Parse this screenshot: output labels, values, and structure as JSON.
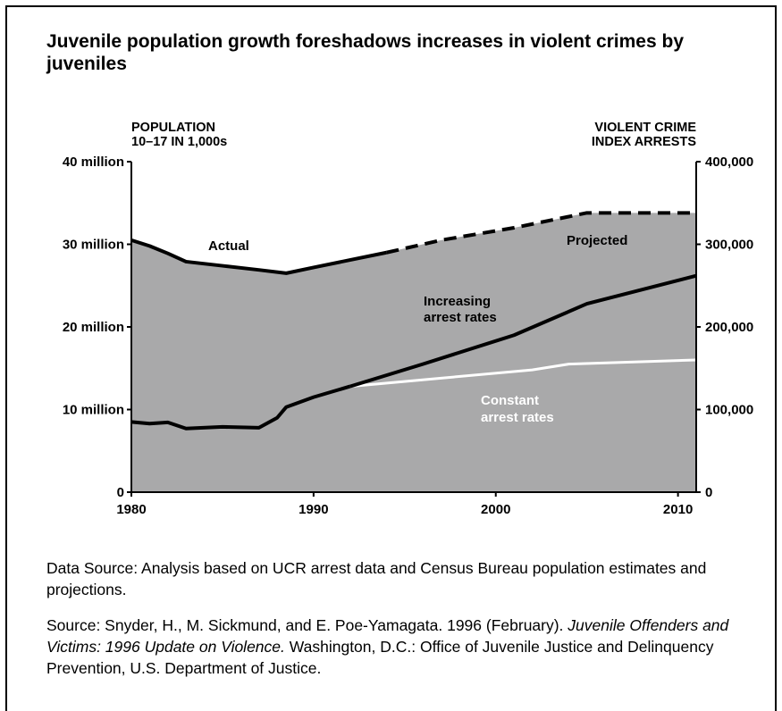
{
  "title": "Juvenile population growth foreshadows increases in violent crimes by juveniles",
  "chart_data": {
    "type": "area",
    "left_axis": {
      "label_line1": "POPULATION",
      "label_line2": "10–17 IN 1,000s",
      "ticks": [
        "0",
        "10 million",
        "20 million",
        "30 million",
        "40 million"
      ],
      "range": [
        0,
        40000000
      ]
    },
    "right_axis": {
      "label_line1": "VIOLENT CRIME",
      "label_line2": "INDEX ARRESTS",
      "ticks": [
        "0",
        "100,000",
        "200,000",
        "300,000",
        "400,000"
      ],
      "range": [
        0,
        400000
      ]
    },
    "x_axis": {
      "ticks": [
        "1980",
        "1990",
        "2000",
        "2010"
      ],
      "range": [
        1980,
        2011
      ]
    },
    "population_actual": {
      "label": "Actual",
      "x": [
        1980,
        1981,
        1982,
        1983,
        1985,
        1987,
        1988.5,
        1990,
        1992,
        1994
      ],
      "y": [
        30.5,
        29.8,
        28.9,
        27.9,
        27.4,
        26.9,
        26.5,
        27.2,
        28.1,
        29.0
      ]
    },
    "population_projected": {
      "label": "Projected",
      "x": [
        1994,
        1997,
        2001,
        2005,
        2011
      ],
      "y": [
        29.0,
        30.5,
        32.0,
        33.8,
        33.8
      ]
    },
    "arrests_actual": {
      "x": [
        1980,
        1981,
        1982,
        1983,
        1985,
        1987,
        1988,
        1988.5,
        1990,
        1992
      ],
      "y": [
        85000,
        83000,
        84500,
        77000,
        79000,
        78000,
        90000,
        103000,
        115000,
        128000
      ]
    },
    "arrests_increasing": {
      "label_line1": "Increasing",
      "label_line2": "arrest rates",
      "x": [
        1992,
        1996,
        2001,
        2005,
        2011
      ],
      "y": [
        128000,
        155000,
        190000,
        228000,
        262000
      ]
    },
    "arrests_constant": {
      "label_line1": "Constant",
      "label_line2": "arrest rates",
      "x": [
        1992,
        1997,
        2002,
        2004,
        2011
      ],
      "y": [
        128000,
        138000,
        148000,
        155000,
        160000
      ]
    },
    "colors": {
      "area": "#a9a9aa",
      "line": "#000000",
      "constant_line": "#ffffff"
    }
  },
  "data_source": "Data Source: Analysis based on UCR arrest data and Census Bureau population estimates and projections.",
  "source": {
    "prefix": "Source: Snyder, H., M. Sickmund, and E. Poe-Yamagata. 1996 (February). ",
    "italic_title": "Juvenile Offenders and Victims: 1996 Update on Violence.",
    "suffix": " Washington, D.C.: Office of Juvenile Justice and Delinquency Prevention, U.S. Department of Justice."
  }
}
